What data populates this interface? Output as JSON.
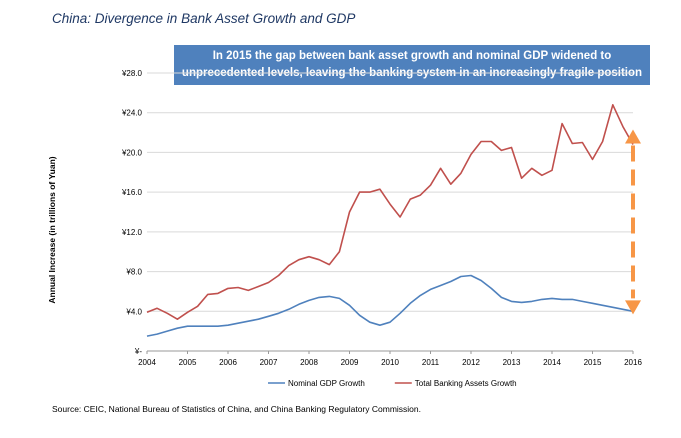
{
  "title": "China: Divergence in Bank Asset Growth and GDP",
  "callout": {
    "line1": "In 2015 the gap between bank asset growth and nominal GDP widened to",
    "line2": "unprecedented levels, leaving the banking system in an increasingly fragile position"
  },
  "source": "Source: CEIC, National Bureau of Statistics of China, and China Banking Regulatory Commission.",
  "colors": {
    "gdp": "#4f81bd",
    "bank": "#c0504d",
    "arrow": "#f79646",
    "callout_bg": "#4f81bd"
  },
  "chart_data": {
    "type": "line",
    "title": "China: Divergence in Bank Asset Growth and GDP",
    "xlabel": "",
    "ylabel": "Annual Increase (in trillions of Yuan)",
    "xlim": [
      2004,
      2016
    ],
    "ylim": [
      0,
      28
    ],
    "x_ticks": [
      "2004",
      "2005",
      "2006",
      "2007",
      "2008",
      "2009",
      "2010",
      "2011",
      "2012",
      "2013",
      "2014",
      "2015",
      "2016"
    ],
    "y_ticks": [
      {
        "value": 0,
        "label": "¥-"
      },
      {
        "value": 4,
        "label": "¥4.0"
      },
      {
        "value": 8,
        "label": "¥8.0"
      },
      {
        "value": 12,
        "label": "¥12.0"
      },
      {
        "value": 16,
        "label": "¥16.0"
      },
      {
        "value": 20,
        "label": "¥20.0"
      },
      {
        "value": 24,
        "label": "¥24.0"
      },
      {
        "value": 28,
        "label": "¥28.0"
      }
    ],
    "legend_position": "bottom",
    "grid": "horizontal",
    "series": [
      {
        "name": "Nominal GDP Growth",
        "color": "#4f81bd",
        "x": [
          2004,
          2004.25,
          2004.5,
          2004.75,
          2005,
          2005.25,
          2005.5,
          2005.75,
          2006,
          2006.25,
          2006.5,
          2006.75,
          2007,
          2007.25,
          2007.5,
          2007.75,
          2008,
          2008.25,
          2008.5,
          2008.75,
          2009,
          2009.25,
          2009.5,
          2009.75,
          2010,
          2010.25,
          2010.5,
          2010.75,
          2011,
          2011.25,
          2011.5,
          2011.75,
          2012,
          2012.25,
          2012.5,
          2012.75,
          2013,
          2013.25,
          2013.5,
          2013.75,
          2014,
          2014.25,
          2014.5,
          2014.75,
          2015,
          2015.25,
          2015.5,
          2015.75,
          2016
        ],
        "values": [
          1.5,
          1.7,
          2.0,
          2.3,
          2.5,
          2.5,
          2.5,
          2.5,
          2.6,
          2.8,
          3.0,
          3.2,
          3.5,
          3.8,
          4.2,
          4.7,
          5.1,
          5.4,
          5.5,
          5.3,
          4.6,
          3.6,
          2.9,
          2.6,
          2.9,
          3.8,
          4.8,
          5.6,
          6.2,
          6.6,
          7.0,
          7.5,
          7.6,
          7.1,
          6.3,
          5.4,
          5.0,
          4.9,
          5.0,
          5.2,
          5.3,
          5.2,
          5.2,
          5.0,
          4.8,
          4.6,
          4.4,
          4.2,
          4.0
        ]
      },
      {
        "name": "Total Banking Assets Growth",
        "color": "#c0504d",
        "x": [
          2004,
          2004.25,
          2004.5,
          2004.75,
          2005,
          2005.25,
          2005.5,
          2005.75,
          2006,
          2006.25,
          2006.5,
          2006.75,
          2007,
          2007.25,
          2007.5,
          2007.75,
          2008,
          2008.25,
          2008.5,
          2008.75,
          2009,
          2009.25,
          2009.5,
          2009.75,
          2010,
          2010.25,
          2010.5,
          2010.75,
          2011,
          2011.25,
          2011.5,
          2011.75,
          2012,
          2012.25,
          2012.5,
          2012.75,
          2013,
          2013.25,
          2013.5,
          2013.75,
          2014,
          2014.25,
          2014.5,
          2014.75,
          2015,
          2015.25,
          2015.5,
          2015.75,
          2016
        ],
        "values": [
          3.9,
          4.3,
          3.8,
          3.2,
          3.9,
          4.5,
          5.7,
          5.8,
          6.3,
          6.4,
          6.1,
          6.5,
          6.9,
          7.6,
          8.6,
          9.2,
          9.5,
          9.2,
          8.7,
          10.0,
          14.0,
          16.0,
          16.0,
          16.3,
          14.8,
          13.5,
          15.3,
          15.7,
          16.7,
          18.4,
          16.8,
          17.9,
          19.8,
          21.1,
          21.1,
          20.2,
          20.5,
          17.4,
          18.4,
          17.7,
          18.2,
          22.9,
          20.9,
          21.0,
          19.3,
          21.1,
          24.8,
          22.6,
          20.8
        ]
      }
    ],
    "annotations": [
      {
        "type": "double-arrow",
        "x": 2016,
        "from": 4.5,
        "to": 21.5
      }
    ]
  }
}
